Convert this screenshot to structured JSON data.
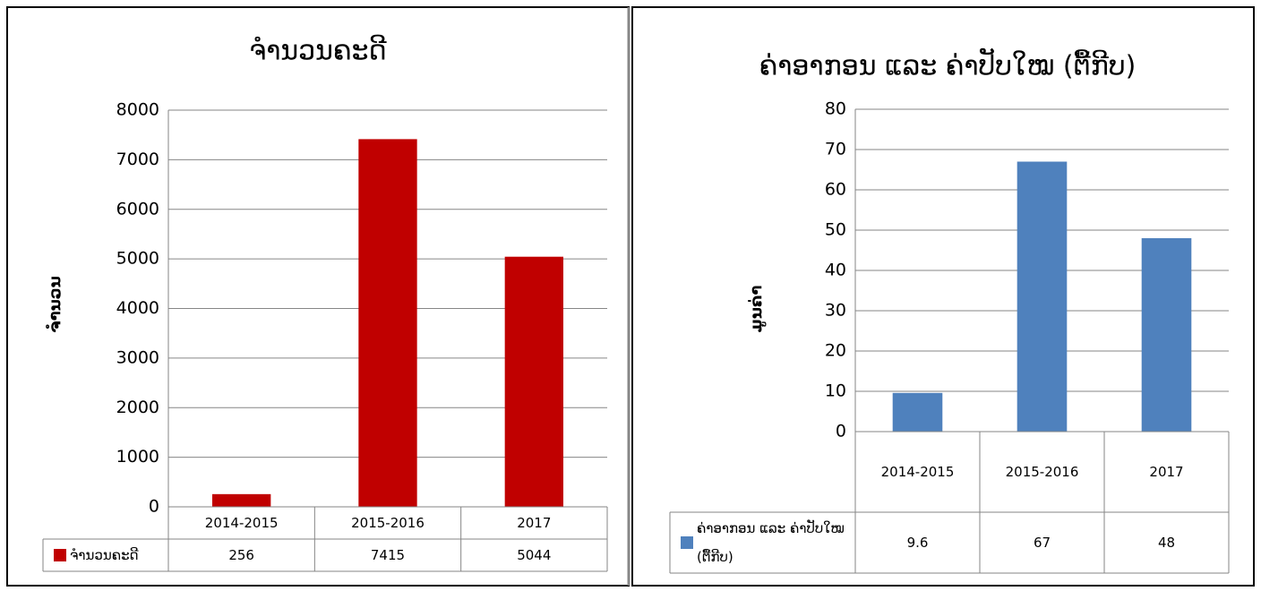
{
  "chart_data": [
    {
      "type": "bar",
      "title": "ຈຳນວນຄະດີ",
      "y_label": "ຈຳນວນ",
      "categories": [
        "2014-2015",
        "2015-2016",
        "2017"
      ],
      "series": [
        {
          "name": "ຈຳນວນຄະດີ",
          "color": "#c00000",
          "values": [
            256,
            7415,
            5044
          ]
        }
      ],
      "ylim": [
        0,
        8000
      ],
      "yticks": [
        0,
        1000,
        2000,
        3000,
        4000,
        5000,
        6000,
        7000,
        8000
      ],
      "grid": true,
      "data_table": true
    },
    {
      "type": "bar",
      "title": "ຄ່າອາກອນ ແລະ ຄ່າປັບໃໝ (ຕື້ກີບ)",
      "y_label": "ມູນຄ່າ",
      "categories": [
        "2014-2015",
        "2015-2016",
        "2017"
      ],
      "series": [
        {
          "name": "ຄ່າອາກອນ ແລະ ຄ່າປັບໃໝ (ຕື້ກີບ)",
          "color": "#4f81bd",
          "values": [
            9.6,
            67,
            48
          ]
        }
      ],
      "ylim": [
        0,
        80
      ],
      "yticks": [
        0,
        10,
        20,
        30,
        40,
        50,
        60,
        70,
        80
      ],
      "grid": true,
      "data_table": true
    }
  ]
}
